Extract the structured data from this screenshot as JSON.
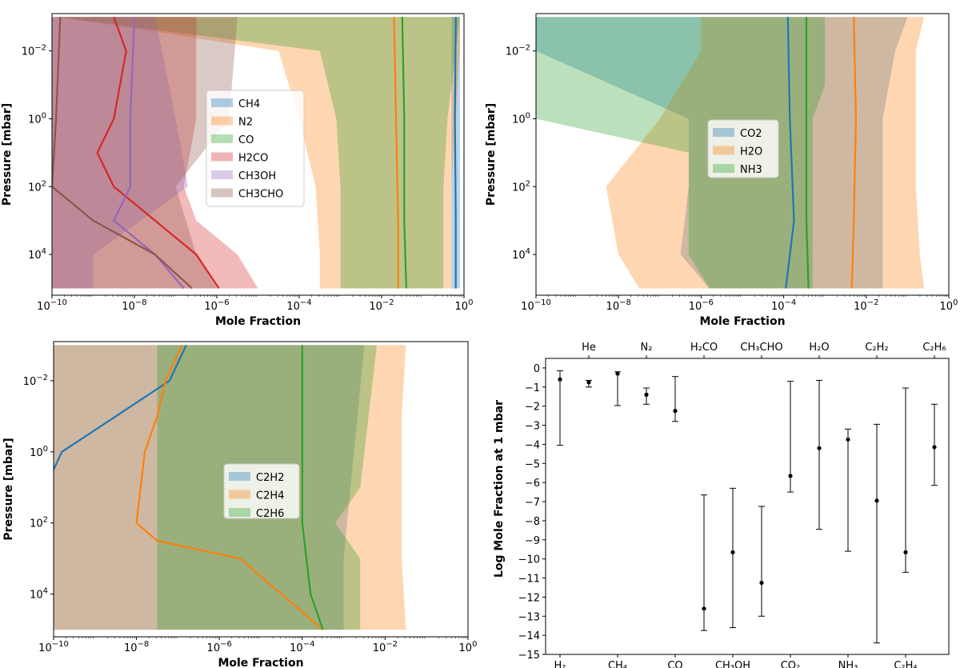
{
  "chart_data": [
    {
      "type": "area",
      "panel": "top-left",
      "xlabel": "Mole Fraction",
      "ylabel": "Pressure [mbar]",
      "xscale": "log",
      "yscale": "log",
      "xlim_exp": [
        -10,
        0
      ],
      "ylim_exp_top_to_bottom": [
        -3,
        5
      ],
      "xtick_labels": [
        "10^-10",
        "10^-8",
        "10^-6",
        "10^-4",
        "10^-2",
        "10^0"
      ],
      "ytick_labels": [
        "10^-2",
        "10^0",
        "10^2",
        "10^4"
      ],
      "legend": [
        "CH4",
        "N2",
        "CO",
        "H2CO",
        "CH3OH",
        "CH3CHO"
      ],
      "legend_position": "center",
      "series": [
        {
          "name": "CH4",
          "color": "#1f77b4",
          "band": [
            [
              -3,
              -0.3,
              -0.1
            ],
            [
              -1,
              -0.3,
              -0.1
            ],
            [
              1,
              -0.3,
              -0.1
            ],
            [
              3,
              -0.3,
              -0.1
            ],
            [
              5,
              -0.3,
              -0.1
            ]
          ],
          "median": [
            [
              -3,
              -0.2
            ],
            [
              0,
              -0.22
            ],
            [
              3,
              -0.2
            ],
            [
              5,
              -0.2
            ]
          ]
        },
        {
          "name": "N2",
          "color": "#ff7f0e",
          "band": [
            [
              -3,
              -9.8,
              -0.1
            ],
            [
              -2,
              -4.5,
              -0.1
            ],
            [
              0,
              -4,
              -0.2
            ],
            [
              2,
              -3.6,
              -0.3
            ],
            [
              4,
              -3.5,
              -0.3
            ],
            [
              5,
              -3.5,
              -0.3
            ]
          ],
          "median": [
            [
              -3,
              -1.7
            ],
            [
              0,
              -1.65
            ],
            [
              3,
              -1.6
            ],
            [
              5,
              -1.6
            ]
          ]
        },
        {
          "name": "CO",
          "color": "#2ca02c",
          "band": [
            [
              -3,
              -9.9,
              -0.1
            ],
            [
              -2,
              -3.5,
              -0.2
            ],
            [
              0,
              -3.1,
              -0.4
            ],
            [
              2,
              -3,
              -0.5
            ],
            [
              4,
              -3,
              -0.5
            ],
            [
              5,
              -3,
              -0.5
            ]
          ],
          "median": [
            [
              -3,
              -1.5
            ],
            [
              0,
              -1.45
            ],
            [
              3,
              -1.45
            ],
            [
              5,
              -1.4
            ]
          ]
        },
        {
          "name": "H2CO",
          "color": "#d62728",
          "band": [
            [
              -3,
              -10,
              -6.5
            ],
            [
              0,
              -10,
              -6.5
            ],
            [
              2,
              -10,
              -6.8
            ],
            [
              3,
              -10,
              -6.5
            ],
            [
              4,
              -10,
              -5.5
            ],
            [
              5,
              -10,
              -5
            ]
          ],
          "median": [
            [
              -3,
              -8.5
            ],
            [
              -2,
              -8.2
            ],
            [
              0,
              -8.5
            ],
            [
              1,
              -8.9
            ],
            [
              2,
              -8.5
            ],
            [
              3,
              -7.5
            ],
            [
              4,
              -6.5
            ],
            [
              5,
              -5.95
            ]
          ]
        },
        {
          "name": "CH3OH",
          "color": "#9467bd",
          "band": [
            [
              -3,
              -10,
              -7.5
            ],
            [
              0,
              -10,
              -7
            ],
            [
              2,
              -10,
              -6.7
            ],
            [
              4,
              -10,
              -9
            ],
            [
              5,
              -10,
              -9
            ]
          ],
          "median": [
            [
              -3,
              -8
            ],
            [
              0,
              -8.1
            ],
            [
              2,
              -8.1
            ],
            [
              3,
              -8.5
            ],
            [
              4,
              -7.5
            ],
            [
              5,
              -6.8
            ]
          ]
        },
        {
          "name": "CH3CHO",
          "color": "#8c564b",
          "band": [
            [
              -3,
              -10,
              -5.5
            ],
            [
              0,
              -10,
              -5.7
            ],
            [
              2,
              -10,
              -7
            ],
            [
              4,
              -10,
              -6.5
            ],
            [
              5,
              -10,
              -6
            ]
          ],
          "median": [
            [
              -3,
              -9.8
            ],
            [
              0,
              -9.9
            ],
            [
              2,
              -10
            ],
            [
              3,
              -9
            ],
            [
              4,
              -7.5
            ],
            [
              5,
              -6.6
            ]
          ]
        }
      ]
    },
    {
      "type": "area",
      "panel": "top-right",
      "xlabel": "Mole Fraction",
      "ylabel": "Pressure [mbar]",
      "xscale": "log",
      "yscale": "log",
      "xtick_labels": [
        "10^-10",
        "10^-8",
        "10^-6",
        "10^-4",
        "10^-2",
        "10^0"
      ],
      "ytick_labels": [
        "10^-2",
        "10^0",
        "10^2",
        "10^4"
      ],
      "legend": [
        "CO2",
        "H2O",
        "NH3"
      ],
      "legend_position": "center",
      "series": [
        {
          "name": "CO2",
          "color": "#1f77b4",
          "band": [
            [
              -3,
              -10,
              -1
            ],
            [
              -2,
              -10,
              -1.3
            ],
            [
              0,
              -6.3,
              -1.6
            ],
            [
              2,
              -6.3,
              -1.6
            ],
            [
              4,
              -6.5,
              -1.6
            ],
            [
              5,
              -5.8,
              -1.6
            ]
          ],
          "median": [
            [
              -3,
              -3.9
            ],
            [
              0,
              -3.85
            ],
            [
              3,
              -3.75
            ],
            [
              5,
              -3.95
            ]
          ]
        },
        {
          "name": "H2O",
          "color": "#ff7f0e",
          "band": [
            [
              -3,
              -6,
              -0.6
            ],
            [
              -2,
              -6,
              -0.8
            ],
            [
              0,
              -7,
              -0.8
            ],
            [
              2,
              -8.3,
              -0.8
            ],
            [
              4,
              -8,
              -0.7
            ],
            [
              5,
              -7.5,
              -0.6
            ]
          ],
          "median": [
            [
              -3,
              -2.3
            ],
            [
              0,
              -2.25
            ],
            [
              3,
              -2.3
            ],
            [
              5,
              -2.35
            ]
          ]
        },
        {
          "name": "NH3",
          "color": "#2ca02c",
          "band": [
            [
              -3,
              -10,
              -3
            ],
            [
              -1,
              -10,
              -3
            ],
            [
              0,
              -10,
              -3.3
            ],
            [
              1,
              -6.3,
              -3.3
            ],
            [
              4,
              -6.3,
              -3.3
            ],
            [
              5,
              -5.8,
              -3.3
            ]
          ],
          "median": [
            [
              -3,
              -3.45
            ],
            [
              0,
              -3.45
            ],
            [
              3,
              -3.45
            ],
            [
              5,
              -3.4
            ]
          ]
        }
      ]
    },
    {
      "type": "area",
      "panel": "bottom-left",
      "xlabel": "Mole Fraction",
      "ylabel": "Pressure [mbar]",
      "xscale": "log",
      "yscale": "log",
      "xtick_labels": [
        "10^-10",
        "10^-8",
        "10^-6",
        "10^-4",
        "10^-2",
        "10^0"
      ],
      "ytick_labels": [
        "10^-2",
        "10^0",
        "10^2",
        "10^4"
      ],
      "legend": [
        "C2H2",
        "C2H4",
        "C2H6"
      ],
      "legend_position": "center",
      "series": [
        {
          "name": "C2H2",
          "color": "#1f77b4",
          "band": [
            [
              -3,
              -10,
              -2.5
            ],
            [
              3,
              -10,
              -3
            ],
            [
              5,
              -10,
              -3
            ]
          ],
          "median": [
            [
              -3,
              -6.8
            ],
            [
              -2,
              -7.2
            ],
            [
              -1,
              -8.5
            ],
            [
              0,
              -9.8
            ],
            [
              1,
              -10.2
            ]
          ]
        },
        {
          "name": "C2H4",
          "color": "#ff7f0e",
          "band": [
            [
              -3,
              -10,
              -1.5
            ],
            [
              -1,
              -10,
              -1.6
            ],
            [
              0,
              -10,
              -1.6
            ],
            [
              3,
              -10,
              -1.6
            ],
            [
              5,
              -10,
              -1.5
            ]
          ],
          "median": [
            [
              -3,
              -6.9
            ],
            [
              -2,
              -7.3
            ],
            [
              -1,
              -7.5
            ],
            [
              0,
              -7.8
            ],
            [
              1,
              -7.9
            ],
            [
              2,
              -8
            ],
            [
              2.5,
              -7.5
            ],
            [
              3,
              -5.5
            ],
            [
              4,
              -4.5
            ],
            [
              5,
              -3.5
            ]
          ]
        },
        {
          "name": "C2H6",
          "color": "#2ca02c",
          "band": [
            [
              -3,
              -7.5,
              -2.2
            ],
            [
              0,
              -7.5,
              -2.5
            ],
            [
              1,
              -7.5,
              -2.6
            ],
            [
              2,
              -7.5,
              -3.2
            ],
            [
              3,
              -7.5,
              -2.6
            ],
            [
              5,
              -7.5,
              -2.6
            ]
          ],
          "median": [
            [
              -3,
              -4
            ],
            [
              0,
              -4
            ],
            [
              2,
              -4
            ],
            [
              4,
              -3.8
            ],
            [
              5,
              -3.5
            ]
          ]
        }
      ]
    },
    {
      "type": "errorbar",
      "panel": "bottom-right",
      "ylabel": "Log Mole Fraction at 1 mbar",
      "ylim": [
        -15,
        0.5
      ],
      "ytick_labels": [
        "0",
        "-1",
        "-2",
        "-3",
        "-4",
        "-5",
        "-6",
        "-7",
        "-8",
        "-9",
        "-10",
        "-11",
        "-12",
        "-13",
        "-14",
        "-15"
      ],
      "bottom_labels": [
        "H₂",
        "CH₄",
        "CO",
        "CH₃OH",
        "CO₂",
        "NH₃",
        "C₂H₄"
      ],
      "top_labels": [
        "He",
        "N₂",
        "H₂CO",
        "CH₃CHO",
        "H₂O",
        "C₂H₂",
        "C₂H₆"
      ],
      "categories": [
        "H2",
        "He",
        "CH4",
        "N2",
        "CO",
        "H2CO",
        "CH3OH",
        "CH3CHO",
        "CO2",
        "H2O",
        "NH3",
        "C2H2",
        "C2H4",
        "C2H6"
      ],
      "values": [
        -0.6,
        -0.75,
        -0.3,
        -1.4,
        -2.25,
        -12.6,
        -9.65,
        -11.25,
        -5.65,
        -4.2,
        -3.75,
        -6.95,
        -9.65,
        -4.15
      ],
      "lower": [
        -4.05,
        -1.0,
        -1.97,
        -1.9,
        -2.8,
        -13.75,
        -13.6,
        -13.0,
        -6.5,
        -8.45,
        -9.6,
        -14.4,
        -10.7,
        -6.15
      ],
      "upper": [
        -0.15,
        -0.65,
        -0.2,
        -1.05,
        -0.45,
        -6.65,
        -6.3,
        -7.25,
        -0.7,
        -0.65,
        -3.2,
        -2.95,
        -1.05,
        -1.9
      ]
    }
  ]
}
